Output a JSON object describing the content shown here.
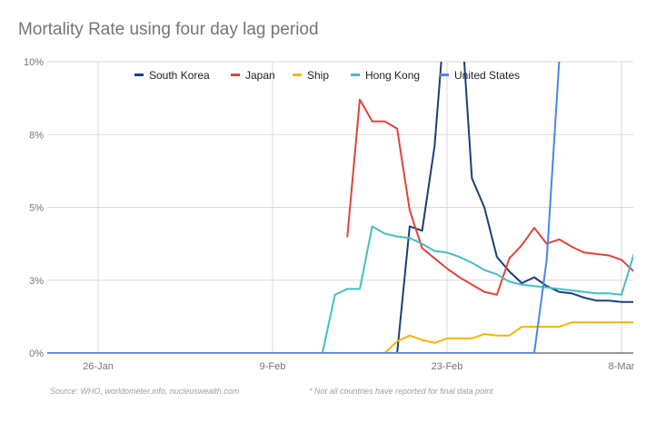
{
  "chart_data": {
    "type": "line",
    "title": "Mortality Rate using four day lag period",
    "xlabel": "",
    "ylabel": "",
    "x_ticks": [
      "26-Jan",
      "9-Feb",
      "23-Feb",
      "8-Mar"
    ],
    "y_ticks": [
      "0%",
      "3%",
      "5%",
      "8%",
      "10%"
    ],
    "ylim": [
      0,
      10
    ],
    "legend_position": "top",
    "grid": true,
    "x": [
      "21-Jan",
      "22-Jan",
      "23-Jan",
      "24-Jan",
      "25-Jan",
      "26-Jan",
      "27-Jan",
      "28-Jan",
      "29-Jan",
      "30-Jan",
      "31-Jan",
      "1-Feb",
      "2-Feb",
      "3-Feb",
      "4-Feb",
      "5-Feb",
      "6-Feb",
      "7-Feb",
      "8-Feb",
      "9-Feb",
      "10-Feb",
      "11-Feb",
      "12-Feb",
      "13-Feb",
      "14-Feb",
      "15-Feb",
      "16-Feb",
      "17-Feb",
      "18-Feb",
      "19-Feb",
      "20-Feb",
      "21-Feb",
      "22-Feb",
      "23-Feb",
      "24-Feb",
      "25-Feb",
      "26-Feb",
      "27-Feb",
      "28-Feb",
      "29-Feb",
      "1-Mar",
      "2-Mar",
      "3-Mar",
      "4-Mar",
      "5-Mar",
      "6-Mar",
      "7-Mar",
      "8-Mar",
      "9-Mar"
    ],
    "series": [
      {
        "name": "South Korea",
        "color": "#1a3f7a",
        "values": [
          0,
          0,
          0,
          0,
          0,
          0,
          0,
          0,
          0,
          0,
          0,
          0,
          0,
          0,
          0,
          0,
          0,
          0,
          0,
          0,
          0,
          0,
          0,
          0,
          0,
          0,
          0,
          0,
          0,
          0,
          4.35,
          4.2,
          7.1,
          12.5,
          12.5,
          6.0,
          5.0,
          3.3,
          2.8,
          2.4,
          2.6,
          2.3,
          2.1,
          2.05,
          1.9,
          1.8,
          1.8,
          1.75,
          1.75
        ]
      },
      {
        "name": "Japan",
        "color": "#e0443a",
        "values": [
          null,
          null,
          null,
          null,
          null,
          null,
          null,
          null,
          null,
          null,
          null,
          null,
          null,
          null,
          null,
          null,
          null,
          null,
          null,
          null,
          null,
          null,
          null,
          null,
          null,
          4.0,
          8.7,
          7.95,
          7.95,
          7.7,
          4.9,
          3.6,
          3.25,
          2.9,
          2.6,
          2.35,
          2.1,
          2.0,
          3.25,
          3.7,
          4.3,
          3.75,
          3.9,
          3.65,
          3.45,
          3.4,
          3.35,
          3.2,
          2.8
        ]
      },
      {
        "name": "Ship",
        "color": "#f4b400",
        "values": [
          null,
          null,
          null,
          null,
          null,
          null,
          null,
          null,
          null,
          null,
          null,
          null,
          null,
          null,
          null,
          null,
          null,
          null,
          null,
          null,
          null,
          null,
          null,
          null,
          null,
          null,
          null,
          null,
          0,
          0.4,
          0.6,
          0.45,
          0.35,
          0.5,
          0.5,
          0.5,
          0.65,
          0.6,
          0.6,
          0.9,
          0.9,
          0.9,
          0.9,
          1.05,
          1.05,
          1.05,
          1.05,
          1.05,
          1.05
        ]
      },
      {
        "name": "Hong Kong",
        "color": "#46bdc6",
        "values": [
          null,
          null,
          null,
          null,
          null,
          null,
          null,
          null,
          null,
          null,
          null,
          null,
          null,
          null,
          null,
          null,
          null,
          null,
          null,
          null,
          null,
          null,
          null,
          0,
          2.0,
          2.2,
          2.2,
          4.35,
          4.1,
          4.0,
          3.95,
          3.75,
          3.5,
          3.45,
          3.3,
          3.1,
          2.85,
          2.7,
          2.45,
          2.35,
          2.3,
          2.25,
          2.2,
          2.15,
          2.1,
          2.05,
          2.05,
          2.0,
          3.4
        ]
      },
      {
        "name": "United States",
        "color": "#4a86e8",
        "values": [
          0,
          0,
          0,
          0,
          0,
          0,
          0,
          0,
          0,
          0,
          0,
          0,
          0,
          0,
          0,
          0,
          0,
          0,
          0,
          0,
          0,
          0,
          0,
          0,
          0,
          0,
          0,
          0,
          0,
          0,
          0,
          0,
          0,
          0,
          0,
          0,
          0,
          0,
          0,
          0,
          0,
          3.2,
          10.0,
          12.5,
          null,
          null,
          null,
          null,
          null
        ]
      }
    ],
    "notes": {
      "source": "Source: WHO, worldometer.info, nucleuswealth.com",
      "footnote": "* Not all countries have reported for final data point"
    }
  }
}
